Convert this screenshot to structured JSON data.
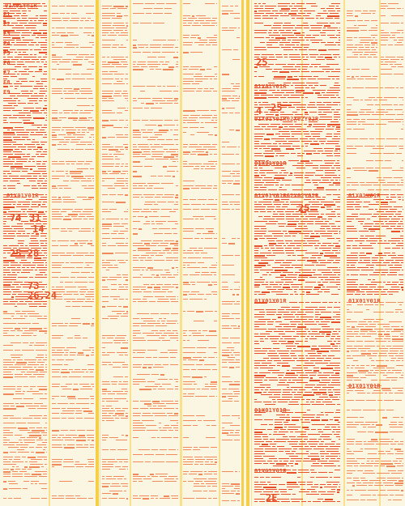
{
  "colors": {
    "background": "#fbf6e2",
    "orange": "#e8502a",
    "orange_light": "#f08a5a",
    "yellow": "#f6cf4a",
    "yellow_light": "#f9e08c"
  },
  "header_labels": {
    "a": "01X01Y01R",
    "b": "01X01Y01R02X02Y02R",
    "c": "01X01Y01R02X02Y02R",
    "d": "01X01Y01R",
    "e": "01X01Y01R"
  },
  "row_labels": [
    "F1",
    "F2",
    "F3",
    "F4",
    "F5",
    "F6",
    "F7",
    "F8",
    "F9"
  ],
  "big_numbers": [
    "25",
    "74",
    "31",
    "25.28",
    "73",
    "14",
    "26.24",
    "25",
    "25",
    "4",
    "2E"
  ]
}
